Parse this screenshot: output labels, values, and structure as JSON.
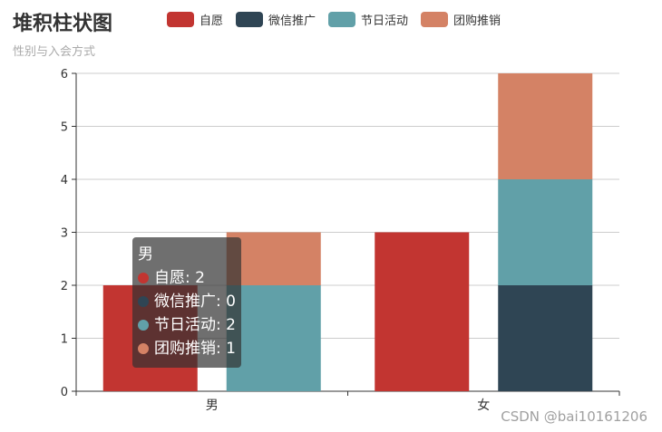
{
  "chart_data": {
    "type": "bar",
    "stacked": true,
    "title": "堆积柱状图",
    "subtitle": "性别与入会方式",
    "categories": [
      "男",
      "女"
    ],
    "ylim": [
      0,
      6
    ],
    "yticks": [
      "0",
      "1",
      "2",
      "3",
      "4",
      "5",
      "6"
    ],
    "grid": true,
    "legend_position": "top",
    "stacks": [
      {
        "id": "a",
        "series": [
          "自愿"
        ]
      },
      {
        "id": "b",
        "series": [
          "微信推广",
          "节日活动",
          "团购推销"
        ]
      }
    ],
    "series": [
      {
        "name": "自愿",
        "color": "#c23531",
        "stack": "a",
        "values": [
          2,
          3
        ]
      },
      {
        "name": "微信推广",
        "color": "#2f4554",
        "stack": "b",
        "values": [
          0,
          2
        ]
      },
      {
        "name": "节日活动",
        "color": "#61a0a8",
        "stack": "b",
        "values": [
          2,
          2
        ]
      },
      {
        "name": "团购推销",
        "color": "#d48265",
        "stack": "b",
        "values": [
          1,
          2
        ]
      }
    ]
  },
  "tooltip": {
    "title": "男",
    "rows": [
      {
        "text": "自愿: 2",
        "color": "#c23531"
      },
      {
        "text": "微信推广: 0",
        "color": "#2f4554"
      },
      {
        "text": "节日活动: 2",
        "color": "#61a0a8"
      },
      {
        "text": "团购推销: 1",
        "color": "#d48265"
      }
    ]
  },
  "watermark": "CSDN @bai10161206"
}
